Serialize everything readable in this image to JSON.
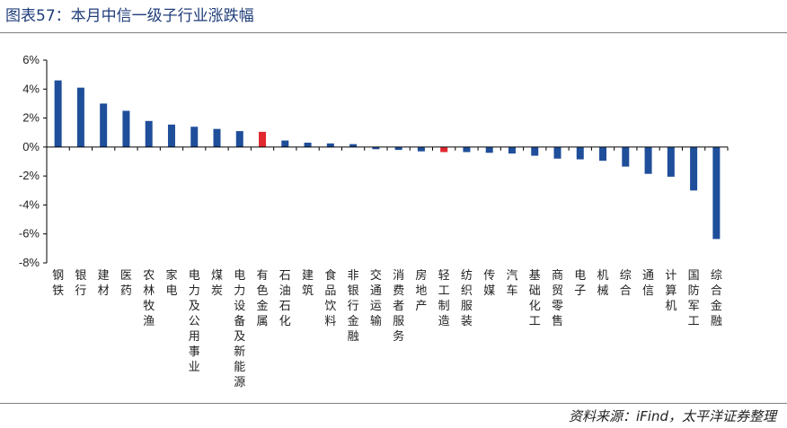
{
  "title": "图表57：本月中信一级子行业涨跌幅",
  "source": "资料来源：iFind，太平洋证券整理",
  "chart_data": {
    "type": "bar",
    "ylim": [
      -8,
      6
    ],
    "yticks": [
      6,
      4,
      2,
      0,
      -2,
      -4,
      -6,
      -8
    ],
    "ytick_suffix": "%",
    "grid": false,
    "legend": "none",
    "colors": {
      "default": "#1f4e9a",
      "highlight": "#e0282e"
    },
    "highlight_index": [
      9,
      17
    ],
    "categories": [
      "钢铁",
      "银行",
      "建材",
      "医药",
      "农林牧渔",
      "家电",
      "电力及公用事业",
      "煤炭",
      "电力设备及新能源",
      "有色金属",
      "石油石化",
      "建筑",
      "食品饮料",
      "非银行金融",
      "交通运输",
      "消费者服务",
      "房地产",
      "轻工制造",
      "纺织服装",
      "传媒",
      "汽车",
      "基础化工",
      "商贸零售",
      "电子",
      "机械",
      "综合",
      "通信",
      "计算机",
      "国防军工",
      "综合金融"
    ],
    "values": [
      4.6,
      4.1,
      3.0,
      2.5,
      1.8,
      1.55,
      1.4,
      1.25,
      1.1,
      1.05,
      0.45,
      0.3,
      0.25,
      0.2,
      -0.15,
      -0.2,
      -0.3,
      -0.35,
      -0.35,
      -0.4,
      -0.45,
      -0.6,
      -0.8,
      -0.85,
      -0.95,
      -1.35,
      -1.85,
      -2.05,
      -3.0,
      -6.35
    ]
  }
}
